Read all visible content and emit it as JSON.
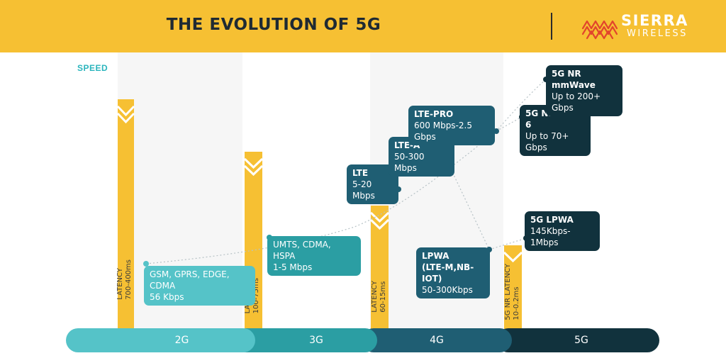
{
  "header": {
    "title": "THE EVOLUTION OF 5G",
    "logo_top": "SIERRA",
    "logo_bottom": "WIRELESS",
    "logo_mark": "sierra-wireless-logo",
    "colors": {
      "banner": "#f6c033",
      "title": "#1f2a33"
    }
  },
  "axis": {
    "speed_label": "SPEED"
  },
  "latency": [
    {
      "generation": "2G",
      "label": "LATENCY",
      "value": "700-400ms"
    },
    {
      "generation": "3G",
      "label": "LATENCY",
      "value": "100-75ms"
    },
    {
      "generation": "4G",
      "label": "LATENCY",
      "value": "60-15ms"
    },
    {
      "generation": "5G",
      "label": "5G NR LATENCY",
      "value": "10-0.2ms"
    }
  ],
  "callouts": {
    "gsm": {
      "title": "GSM, GPRS, EDGE, CDMA",
      "detail": "56 Kbps"
    },
    "umts": {
      "title": "UMTS, CDMA, HSPA",
      "detail": "1-5 Mbps"
    },
    "lte": {
      "title": "LTE",
      "detail": "5-20 Mbps"
    },
    "ltea": {
      "title": "LTE-A",
      "detail": "50-300 Mbps"
    },
    "ltepro": {
      "title": "LTE-PRO",
      "detail": "600 Mbps-2.5 Gbps"
    },
    "lpwa": {
      "title1": "LPWA",
      "title2": "(LTE-M,NB-IOT)",
      "detail": "50-300Kbps"
    },
    "nrsub6": {
      "title": "5G NR SUB-6",
      "detail": "Up to 70+ Gbps"
    },
    "mmwave": {
      "title": "5G NR mmWave",
      "detail": "Up to 200+ Gbps"
    },
    "lpwa5g": {
      "title": "5G LPWA",
      "detail": "145Kbps-1Mbps"
    }
  },
  "generations": [
    {
      "label": "2G",
      "color": "#55c3c8"
    },
    {
      "label": "3G",
      "color": "#2b9ea3"
    },
    {
      "label": "4G",
      "color": "#1f5e73"
    },
    {
      "label": "5G",
      "color": "#11323d"
    }
  ],
  "colors": {
    "latency_bar": "#f6c033",
    "speed_line": "#b7c2c6",
    "dot_light": "#55c3c8",
    "dot_mid": "#2b9ea3",
    "dot_dark": "#1f5e73",
    "dot_navy": "#11323d"
  }
}
